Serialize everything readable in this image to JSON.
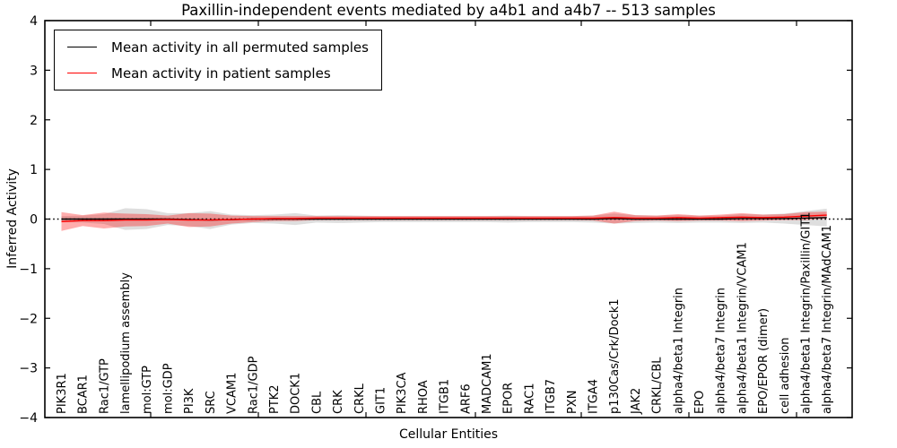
{
  "chart": {
    "title": "Paxillin-independent events mediated by a4b1 and a4b7 -- 513 samples",
    "xlabel": "Cellular Entities",
    "ylabel": "Inferred Activity"
  },
  "legend": {
    "items": [
      {
        "label": "Mean activity in all permuted samples",
        "color": "#000000"
      },
      {
        "label": "Mean activity in patient samples",
        "color": "#ff0000"
      }
    ]
  },
  "chart_data": {
    "type": "line",
    "title": "Paxillin-independent events mediated by a4b1 and a4b7 -- 513 samples",
    "xlabel": "Cellular Entities",
    "ylabel": "Inferred Activity",
    "ylim": [
      -4,
      4
    ],
    "yticks": [
      4,
      3,
      2,
      1,
      0,
      -1,
      -2,
      -3,
      -4
    ],
    "ytick_labels": [
      "4",
      "3",
      "2",
      "1",
      "0",
      "−1",
      "−2",
      "−3",
      "−4"
    ],
    "grid": false,
    "legend_position": "upper left",
    "zero_line": {
      "y": 0,
      "style": "dotted",
      "color": "#000000"
    },
    "categories": [
      "PIK3R1",
      "BCAR1",
      "Rac1/GTP",
      "lamellipodium assembly",
      "mol:GTP",
      "mol:GDP",
      "PI3K",
      "SRC",
      "VCAM1",
      "Rac1/GDP",
      "PTK2",
      "DOCK1",
      "CBL",
      "CRK",
      "CRKL",
      "GIT1",
      "PIK3CA",
      "RHOA",
      "ITGB1",
      "ARF6",
      "MADCAM1",
      "EPOR",
      "RAC1",
      "ITGB7",
      "PXN",
      "ITGA4",
      "p130Cas/Crk/Dock1",
      "JAK2",
      "CRKL/CBL",
      "alpha4/beta1 Integrin",
      "EPO",
      "alpha4/beta7 Integrin",
      "alpha4/beta1 Integrin/VCAM1",
      "EPO/EPOR (dimer)",
      "cell adhesion",
      "alpha4/beta1 Integrin/Paxillin/GIT1",
      "alpha4/beta7 Integrin/MAdCAM1"
    ],
    "series": [
      {
        "name": "Mean activity in all permuted samples",
        "color": "#000000",
        "band_color": "rgba(0,0,0,0.13)",
        "values": [
          0.0,
          0.0,
          0.0,
          0.0,
          0.0,
          0.0,
          -0.01,
          -0.02,
          -0.01,
          0.0,
          0.0,
          0.0,
          0.0,
          0.0,
          0.0,
          0.0,
          0.0,
          0.0,
          0.0,
          0.0,
          0.0,
          0.0,
          0.0,
          0.0,
          0.0,
          0.0,
          0.01,
          0.0,
          0.0,
          0.0,
          0.0,
          0.0,
          0.01,
          0.01,
          0.01,
          0.02,
          0.03
        ],
        "band_halfwidth": [
          0.06,
          0.07,
          0.1,
          0.22,
          0.2,
          0.12,
          0.13,
          0.18,
          0.1,
          0.08,
          0.09,
          0.12,
          0.07,
          0.08,
          0.07,
          0.06,
          0.06,
          0.06,
          0.06,
          0.06,
          0.06,
          0.07,
          0.06,
          0.06,
          0.06,
          0.07,
          0.1,
          0.08,
          0.07,
          0.08,
          0.07,
          0.07,
          0.09,
          0.08,
          0.1,
          0.14,
          0.18
        ]
      },
      {
        "name": "Mean activity in patient samples",
        "color": "#ff0000",
        "band_color": "rgba(255,0,0,0.32)",
        "values": [
          -0.05,
          -0.03,
          -0.03,
          -0.02,
          -0.02,
          -0.01,
          -0.02,
          -0.02,
          -0.01,
          0.0,
          0.01,
          0.01,
          0.02,
          0.02,
          0.02,
          0.02,
          0.02,
          0.02,
          0.02,
          0.02,
          0.02,
          0.02,
          0.02,
          0.02,
          0.02,
          0.02,
          0.03,
          0.02,
          0.02,
          0.03,
          0.02,
          0.03,
          0.04,
          0.03,
          0.04,
          0.06,
          0.08
        ],
        "band_halfwidth": [
          0.19,
          0.11,
          0.16,
          0.13,
          0.12,
          0.08,
          0.14,
          0.13,
          0.08,
          0.06,
          0.05,
          0.05,
          0.04,
          0.04,
          0.04,
          0.04,
          0.04,
          0.04,
          0.04,
          0.04,
          0.04,
          0.04,
          0.04,
          0.04,
          0.04,
          0.05,
          0.12,
          0.06,
          0.05,
          0.07,
          0.05,
          0.06,
          0.08,
          0.06,
          0.06,
          0.08,
          0.07
        ]
      }
    ]
  }
}
